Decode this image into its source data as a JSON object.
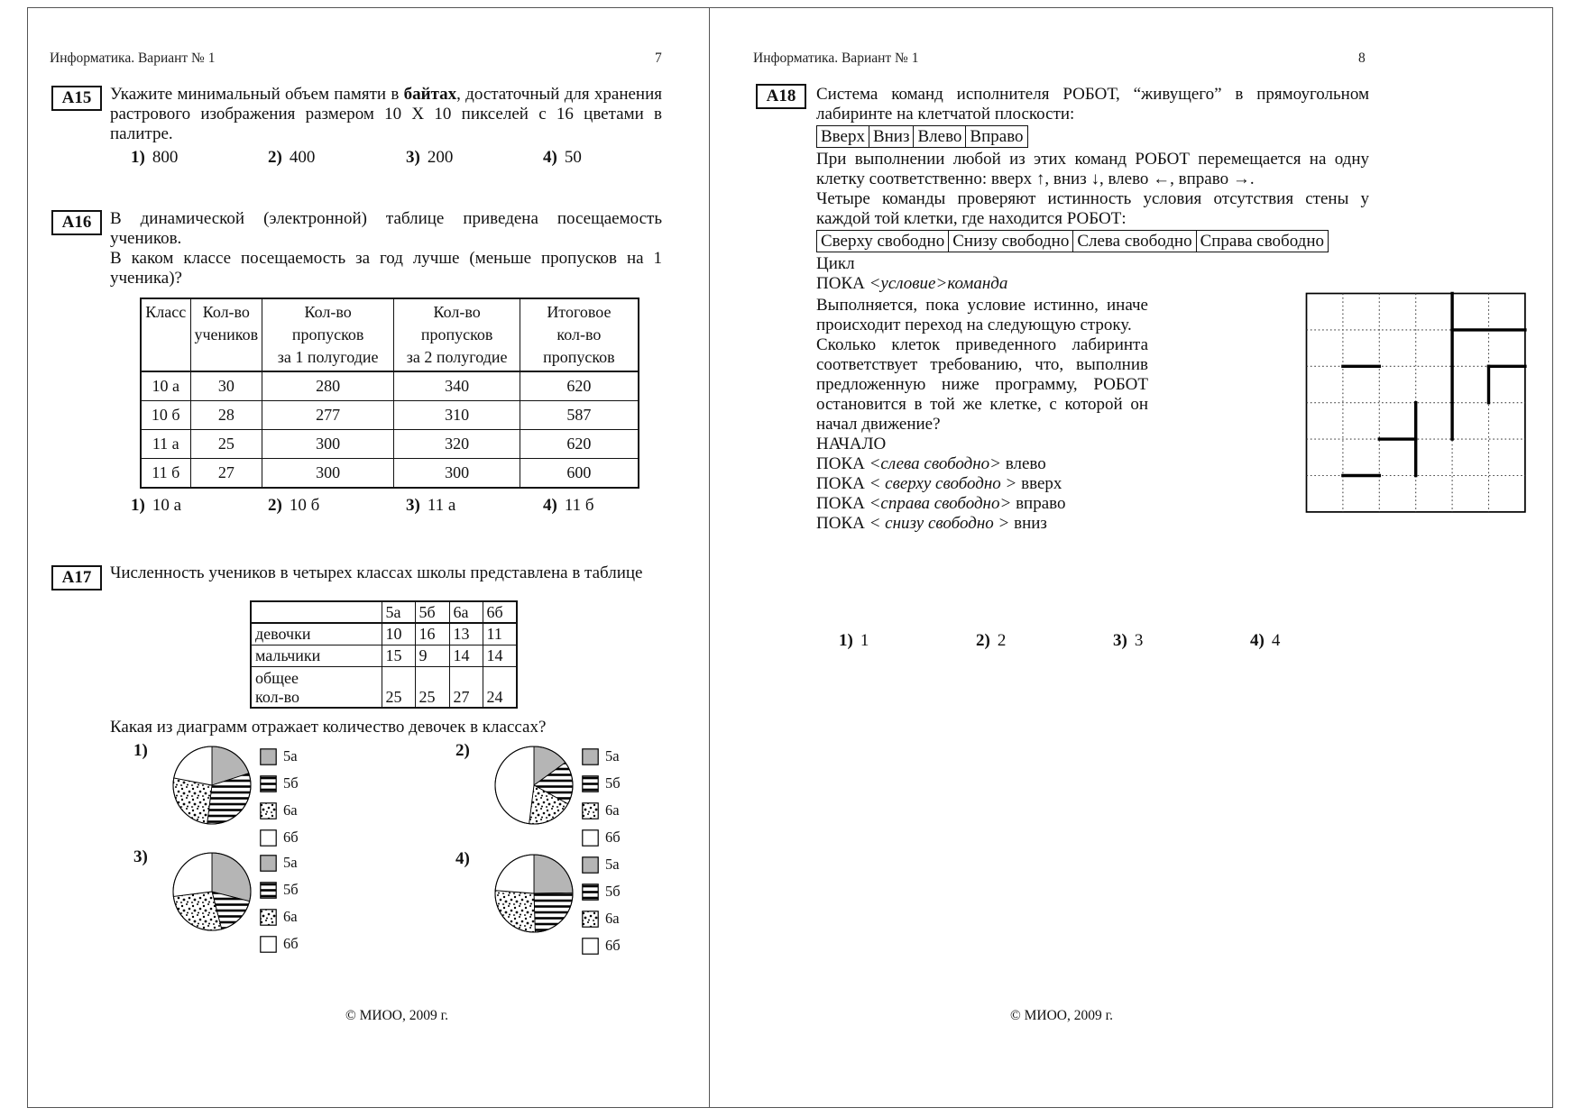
{
  "page7": {
    "header": "Информатика. Вариант № 1",
    "page_number": "7",
    "footer": "© МИОО, 2009 г.",
    "a15": {
      "label": "А15",
      "t1": "Укажите минимальный объем памяти в ",
      "bold": "байтах",
      "t2": ", достаточный для хранения растрового изображения размером 10 Х 10 пикселей с 16 цветами в палитре.",
      "options": [
        {
          "num": "1)",
          "text": "800"
        },
        {
          "num": "2)",
          "text": "400"
        },
        {
          "num": "3)",
          "text": "200"
        },
        {
          "num": "4)",
          "text": "50"
        }
      ]
    },
    "a16": {
      "label": "А16",
      "p1": "В динамической (электронной) таблице приведена посещаемость учеников.",
      "p2": "В каком классе посещаемость за год лучше (меньше пропусков на 1 ученика)?",
      "table": {
        "headers": [
          "Класс",
          "Кол-во\nучеников",
          "Кол-во\nпропусков\nза 1 полугодие",
          "Кол-во\nпропусков\nза 2 полугодие",
          "Итоговое\nкол-во\nпропусков"
        ],
        "rows": [
          [
            "10 а",
            "30",
            "280",
            "340",
            "620"
          ],
          [
            "10 б",
            "28",
            "277",
            "310",
            "587"
          ],
          [
            "11 а",
            "25",
            "300",
            "320",
            "620"
          ],
          [
            "11 б",
            "27",
            "300",
            "300",
            "600"
          ]
        ]
      },
      "options": [
        {
          "num": "1)",
          "text": "10 а"
        },
        {
          "num": "2)",
          "text": "10 б"
        },
        {
          "num": "3)",
          "text": "11 а"
        },
        {
          "num": "4)",
          "text": "11 б"
        }
      ]
    },
    "a17": {
      "label": "А17",
      "p": "Численность учеников в четырех классах школы представлена в таблице",
      "table": {
        "rows": [
          [
            "",
            "5а",
            "5б",
            "6а",
            "6б"
          ],
          [
            "девочки",
            "10",
            "16",
            "13",
            "11"
          ],
          [
            "мальчики",
            "15",
            "9",
            "14",
            "14"
          ],
          [
            "общее\nкол-во",
            "25",
            "25",
            "27",
            "24"
          ]
        ]
      },
      "question": "Какая из диаграмм отражает количество девочек в классах?"
    }
  },
  "page8": {
    "header": "Информатика. Вариант № 1",
    "page_number": "8",
    "footer": "© МИОО, 2009 г.",
    "a18": {
      "label": "А18",
      "p1": "Система команд исполнителя РОБОТ, “живущего” в прямоугольном лабиринте на клетчатой плоскости:",
      "commands": [
        "Вверх",
        "Вниз",
        "Влево",
        "Вправо"
      ],
      "p2": "При выполнении любой из этих команд РОБОТ перемещается на одну клетку соответственно: вверх ↑, вниз ↓, влево ←, вправо →.",
      "p3": "Четыре команды проверяют истинность условия отсутствия стены у каждой той клетки, где находится РОБОТ:",
      "conditions": [
        "Сверху свободно",
        "Снизу свободно",
        "Слева свободно",
        "Справа свободно"
      ],
      "cycle_label": "Цикл",
      "poka": {
        "kw": "ПОКА ",
        "cond": "<условие>",
        "cmd": "команда"
      },
      "p4": "Выполняется, пока условие истинно, иначе происходит переход на следующую строку.",
      "p5": "Сколько клеток приведенного лабиринта соответствует требованию, что, выполнив предложенную ниже программу, РОБОТ остановится в той же клетке, с которой он начал движение?",
      "begin_label": "НАЧАЛО",
      "program": [
        {
          "kw": "ПОКА ",
          "cond": "<слева свободно>",
          "cmd": " влево"
        },
        {
          "kw": "ПОКА ",
          "cond": "< сверху свободно >",
          "cmd": " вверх"
        },
        {
          "kw": "ПОКА ",
          "cond": "<справа свободно>",
          "cmd": " вправо"
        },
        {
          "kw": "ПОКА ",
          "cond": "< снизу свободно >",
          "cmd": " вниз"
        }
      ],
      "maze": {
        "cols": 6,
        "rows": 6,
        "walls": [
          [
            4,
            0,
            4,
            4
          ],
          [
            4,
            1,
            6,
            1
          ],
          [
            1,
            2,
            2,
            2
          ],
          [
            5,
            2,
            6,
            2
          ],
          [
            5,
            2,
            5,
            3
          ],
          [
            3,
            3,
            3,
            5
          ],
          [
            2,
            4,
            3,
            4
          ],
          [
            1,
            5,
            2,
            5
          ]
        ]
      },
      "options": [
        {
          "num": "1)",
          "text": "1"
        },
        {
          "num": "2)",
          "text": "2"
        },
        {
          "num": "3)",
          "text": "3"
        },
        {
          "num": "4)",
          "text": "4"
        }
      ]
    }
  },
  "chart_data": [
    {
      "type": "pie",
      "option": "1)",
      "title": "Какая из диаграмм отражает количество девочек в классах?",
      "labels": [
        "5а",
        "5б",
        "6а",
        "6б"
      ],
      "values": [
        20,
        32,
        26,
        22
      ],
      "legend_position": "right"
    },
    {
      "type": "pie",
      "option": "2)",
      "labels": [
        "5а",
        "5б",
        "6а",
        "6б"
      ],
      "values": [
        15,
        18,
        19,
        48
      ],
      "legend_position": "right"
    },
    {
      "type": "pie",
      "option": "3)",
      "labels": [
        "5а",
        "5б",
        "6а",
        "6б"
      ],
      "values": [
        29,
        17,
        27,
        27
      ],
      "legend_position": "right"
    },
    {
      "type": "pie",
      "option": "4)",
      "labels": [
        "5а",
        "5б",
        "6а",
        "6б"
      ],
      "values": [
        25,
        25,
        27,
        24
      ],
      "legend_position": "right"
    }
  ]
}
